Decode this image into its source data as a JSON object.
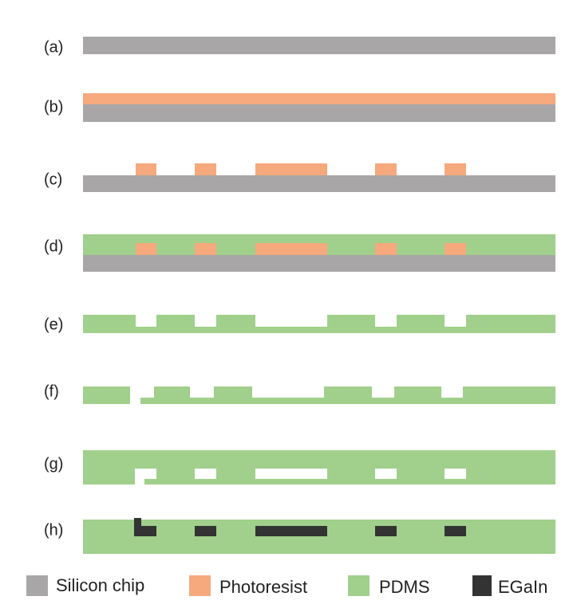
{
  "steps": [
    "(a)",
    "(b)",
    "(c)",
    "(d)",
    "(e)",
    "(f)",
    "(g)",
    "(h)"
  ],
  "legend": [
    {
      "label": "Silicon chip"
    },
    {
      "label": "Photoresist"
    },
    {
      "label": "PDMS"
    },
    {
      "label": "EGaIn"
    }
  ]
}
